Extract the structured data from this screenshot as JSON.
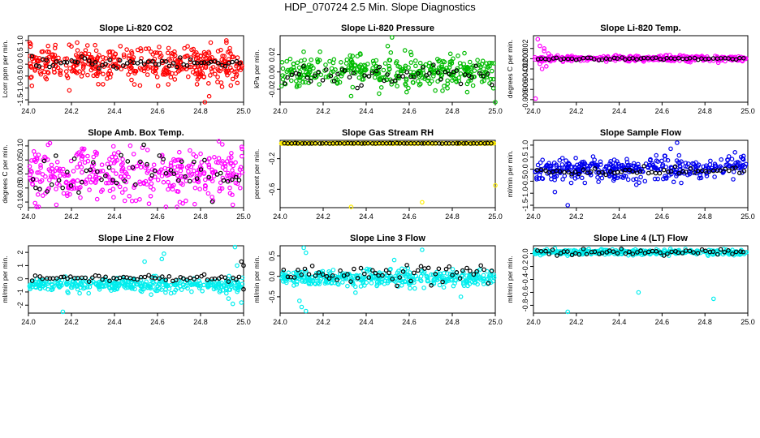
{
  "title": "HDP_070724  2.5 Min. Slope Diagnostics",
  "chart_data": [
    {
      "type": "scatter",
      "title": "Slope Li-820 CO2",
      "xlabel": "",
      "ylabel": "Lcorr ppm per min.",
      "xlim": [
        24.0,
        25.0
      ],
      "ylim": [
        -1.6,
        1.2
      ],
      "xticks": [
        "24.0",
        "24.2",
        "24.4",
        "24.6",
        "24.8",
        "25.0"
      ],
      "yticks": [
        -1.5,
        -1.0,
        -0.5,
        0.0,
        0.5,
        1.0
      ],
      "yticklabels": [
        "-1.5",
        "-1.0",
        "-0.5",
        "0.0",
        "0.5",
        "1.0"
      ],
      "series": [
        {
          "color": "#ff0000",
          "n": 420,
          "center": 0.0,
          "spread": 0.35,
          "trend": 0.0,
          "sparse": 0,
          "points": [
            [
              24.01,
              0.85
            ],
            [
              24.2,
              0.75
            ],
            [
              24.31,
              0.8
            ],
            [
              24.92,
              1.0
            ],
            [
              24.82,
              -1.6
            ],
            [
              24.84,
              -1.35
            ],
            [
              24.19,
              -1.1
            ],
            [
              24.65,
              -0.85
            ],
            [
              24.9,
              -0.95
            ]
          ]
        },
        {
          "color": "#000000",
          "n": 60,
          "center": 0.05,
          "spread": 0.12,
          "trend": 0.0,
          "sparse": 1,
          "points": []
        }
      ]
    },
    {
      "type": "scatter",
      "title": "Slope Li-820 Pressure",
      "xlabel": "",
      "ylabel": "kPa per min.",
      "xlim": [
        24.0,
        25.0
      ],
      "ylim": [
        -0.035,
        0.042
      ],
      "xticks": [
        "24.0",
        "24.2",
        "24.4",
        "24.6",
        "24.8",
        "25.0"
      ],
      "yticks": [
        -0.02,
        0.0,
        0.02
      ],
      "yticklabels": [
        "-0.02",
        "0.00",
        "0.02"
      ],
      "series": [
        {
          "color": "#00bb00",
          "n": 380,
          "center": 0.0,
          "spread": 0.009,
          "trend": 0.0,
          "sparse": 0,
          "points": [
            [
              24.52,
              0.04
            ],
            [
              24.5,
              0.03
            ],
            [
              24.33,
              -0.028
            ],
            [
              24.58,
              0.025
            ],
            [
              25.0,
              -0.035
            ],
            [
              24.46,
              -0.025
            ]
          ]
        },
        {
          "color": "#000000",
          "n": 55,
          "center": -0.003,
          "spread": 0.006,
          "trend": 0.0,
          "sparse": 1,
          "points": []
        }
      ]
    },
    {
      "type": "scatter",
      "title": "Slope Li-820 Temp.",
      "xlabel": "",
      "ylabel": "degrees C per min.",
      "xlim": [
        24.0,
        25.0
      ],
      "ylim": [
        -0.0085,
        0.0045
      ],
      "xticks": [
        "24.0",
        "24.2",
        "24.4",
        "24.6",
        "24.8",
        "25.0"
      ],
      "yticks": [
        -0.008,
        -0.006,
        -0.004,
        -0.002,
        0.0,
        0.002
      ],
      "yticklabels": [
        "-0.008",
        "-0.006",
        "-0.004",
        "-0.002",
        "0.000",
        "0.002"
      ],
      "series": [
        {
          "color": "#ff00ff",
          "n": 300,
          "center": 0.0,
          "spread": 0.0003,
          "trend": 0.0,
          "sparse": 0,
          "points": [
            [
              24.02,
              0.0038
            ],
            [
              24.03,
              0.0025
            ],
            [
              24.04,
              -0.002
            ],
            [
              24.05,
              0.0015
            ],
            [
              24.06,
              -0.0015
            ],
            [
              24.01,
              -0.0078
            ],
            [
              24.07,
              0.001
            ],
            [
              24.03,
              -0.001
            ],
            [
              24.05,
              0.002
            ],
            [
              24.08,
              -0.0005
            ]
          ]
        },
        {
          "color": "#000000",
          "n": 55,
          "center": 0.0,
          "spread": 0.0001,
          "trend": 0.0,
          "sparse": 1,
          "points": []
        }
      ]
    },
    {
      "type": "scatter",
      "title": "Slope Amb. Box Temp.",
      "xlabel": "",
      "ylabel": "degrees C per min.",
      "xlim": [
        24.0,
        25.0
      ],
      "ylim": [
        -0.12,
        0.12
      ],
      "xticks": [
        "24.0",
        "24.2",
        "24.4",
        "24.6",
        "24.8",
        "25.0"
      ],
      "yticks": [
        -0.1,
        -0.05,
        0.0,
        0.05,
        0.1
      ],
      "yticklabels": [
        "-0.10",
        "-0.05",
        "0.00",
        "0.05",
        "0.10"
      ],
      "series": [
        {
          "color": "#ff00ff",
          "n": 380,
          "center": 0.0,
          "spread": 0.045,
          "trend": 0.0,
          "sparse": 0,
          "points": [
            [
              24.1,
              0.11
            ],
            [
              24.13,
              -0.11
            ],
            [
              24.95,
              -0.11
            ]
          ]
        },
        {
          "color": "#000000",
          "n": 55,
          "center": 0.0,
          "spread": 0.04,
          "trend": 0.0,
          "sparse": 1,
          "points": []
        }
      ]
    },
    {
      "type": "scatter",
      "title": "Slope Gas Stream RH",
      "xlabel": "",
      "ylabel": "percent per min.",
      "xlim": [
        24.0,
        25.0
      ],
      "ylim": [
        -0.84,
        0.04
      ],
      "xticks": [
        "24.0",
        "24.2",
        "24.4",
        "24.6",
        "24.8",
        "25.0"
      ],
      "yticks": [
        -0.6,
        -0.2
      ],
      "yticklabels": [
        "-0.6",
        "-0.2"
      ],
      "series": [
        {
          "color": "#ffee00",
          "n": 300,
          "center": 0.0,
          "spread": 0.002,
          "trend": 0.0,
          "sparse": 0,
          "points": [
            [
              24.33,
              -0.83
            ],
            [
              24.66,
              -0.77
            ],
            [
              25.0,
              -0.55
            ],
            [
              24.01,
              0.0
            ]
          ]
        },
        {
          "color": "#000000",
          "n": 60,
          "center": 0.0,
          "spread": 0.001,
          "trend": 0.0,
          "sparse": 1,
          "points": []
        }
      ]
    },
    {
      "type": "scatter",
      "title": "Slope Sample Flow",
      "xlabel": "",
      "ylabel": "ml/min per min.",
      "xlim": [
        24.0,
        25.0
      ],
      "ylim": [
        -1.6,
        1.2
      ],
      "xticks": [
        "24.0",
        "24.2",
        "24.4",
        "24.6",
        "24.8",
        "25.0"
      ],
      "yticks": [
        -1.5,
        -1.0,
        -0.5,
        0.0,
        0.5,
        1.0
      ],
      "yticklabels": [
        "-1.5",
        "-1.0",
        "-0.5",
        "0.0",
        "0.5",
        "1.0"
      ],
      "series": [
        {
          "color": "#0000ee",
          "n": 380,
          "center": 0.0,
          "spread": 0.22,
          "trend": 0.25,
          "sparse": 0,
          "points": [
            [
              24.67,
              1.1
            ],
            [
              24.64,
              0.85
            ],
            [
              24.16,
              -1.5
            ],
            [
              24.1,
              -0.95
            ],
            [
              24.94,
              0.7
            ],
            [
              24.98,
              0.55
            ],
            [
              24.48,
              -0.65
            ],
            [
              24.52,
              -0.5
            ]
          ]
        },
        {
          "color": "#000000",
          "n": 55,
          "center": -0.08,
          "spread": 0.08,
          "trend": 0.0,
          "sparse": 1,
          "points": []
        }
      ]
    },
    {
      "type": "scatter",
      "title": "Slope Line 2 Flow",
      "xlabel": "",
      "ylabel": "ml/min per min.",
      "xlim": [
        24.0,
        25.0
      ],
      "ylim": [
        -2.6,
        2.5
      ],
      "xticks": [
        "24.0",
        "24.2",
        "24.4",
        "24.6",
        "24.8",
        "25.0"
      ],
      "yticks": [
        -2,
        -1,
        0,
        1,
        2
      ],
      "yticklabels": [
        "-2",
        "-1",
        "0",
        "1",
        "2"
      ],
      "series": [
        {
          "color": "#00eeee",
          "n": 360,
          "center": -0.45,
          "spread": 0.25,
          "trend": 0.0,
          "sparse": 0,
          "points": [
            [
              24.96,
              2.4
            ],
            [
              24.63,
              1.9
            ],
            [
              24.54,
              1.3
            ],
            [
              24.62,
              1.5
            ],
            [
              24.16,
              -2.5
            ],
            [
              24.97,
              1.0
            ],
            [
              24.93,
              -1.5
            ],
            [
              24.95,
              -1.9
            ],
            [
              24.99,
              -1.8
            ],
            [
              24.57,
              -1.2
            ],
            [
              24.6,
              -0.9
            ],
            [
              24.92,
              -1.1
            ]
          ]
        },
        {
          "color": "#000000",
          "n": 60,
          "center": 0.05,
          "spread": 0.12,
          "trend": 0.0,
          "sparse": 1,
          "points": [
            [
              25.0,
              1.0
            ],
            [
              24.99,
              1.3
            ],
            [
              25.0,
              -0.8
            ]
          ]
        }
      ]
    },
    {
      "type": "scatter",
      "title": "Slope Line 3 Flow",
      "xlabel": "",
      "ylabel": "ml/min per min.",
      "xlim": [
        24.0,
        25.0
      ],
      "ylim": [
        -0.9,
        0.75
      ],
      "xticks": [
        "24.0",
        "24.2",
        "24.4",
        "24.6",
        "24.8",
        "25.0"
      ],
      "yticks": [
        -0.5,
        0.0,
        0.5
      ],
      "yticklabels": [
        "-0.5",
        "0.0",
        "0.5"
      ],
      "series": [
        {
          "color": "#00eeee",
          "n": 380,
          "center": -0.05,
          "spread": 0.1,
          "trend": 0.0,
          "sparse": 0,
          "points": [
            [
              24.11,
              0.7
            ],
            [
              24.12,
              0.58
            ],
            [
              24.1,
              -0.75
            ],
            [
              24.12,
              -0.85
            ],
            [
              24.09,
              -0.6
            ],
            [
              24.66,
              0.65
            ],
            [
              24.53,
              0.4
            ],
            [
              24.35,
              -0.4
            ],
            [
              24.84,
              -0.5
            ]
          ]
        },
        {
          "color": "#000000",
          "n": 60,
          "center": 0.08,
          "spread": 0.12,
          "trend": 0.0,
          "sparse": 1,
          "points": []
        }
      ]
    },
    {
      "type": "scatter",
      "title": "Slope Line 4 (LT) Flow",
      "xlabel": "",
      "ylabel": "ml/min per min.",
      "xlim": [
        24.0,
        25.0
      ],
      "ylim": [
        -0.92,
        0.12
      ],
      "xticks": [
        "24.0",
        "24.2",
        "24.4",
        "24.6",
        "24.8",
        "25.0"
      ],
      "yticks": [
        -0.8,
        -0.6,
        -0.4,
        -0.2,
        0.0
      ],
      "yticklabels": [
        "-0.8",
        "-0.6",
        "-0.4",
        "-0.2",
        "0.0"
      ],
      "series": [
        {
          "color": "#00eeee",
          "n": 360,
          "center": 0.02,
          "spread": 0.02,
          "trend": 0.0,
          "sparse": 0,
          "points": [
            [
              24.16,
              -0.9
            ],
            [
              24.49,
              -0.6
            ],
            [
              24.84,
              -0.7
            ],
            [
              24.1,
              0.08
            ]
          ]
        },
        {
          "color": "#000000",
          "n": 55,
          "center": 0.02,
          "spread": 0.025,
          "trend": 0.0,
          "sparse": 1,
          "points": []
        }
      ]
    }
  ]
}
